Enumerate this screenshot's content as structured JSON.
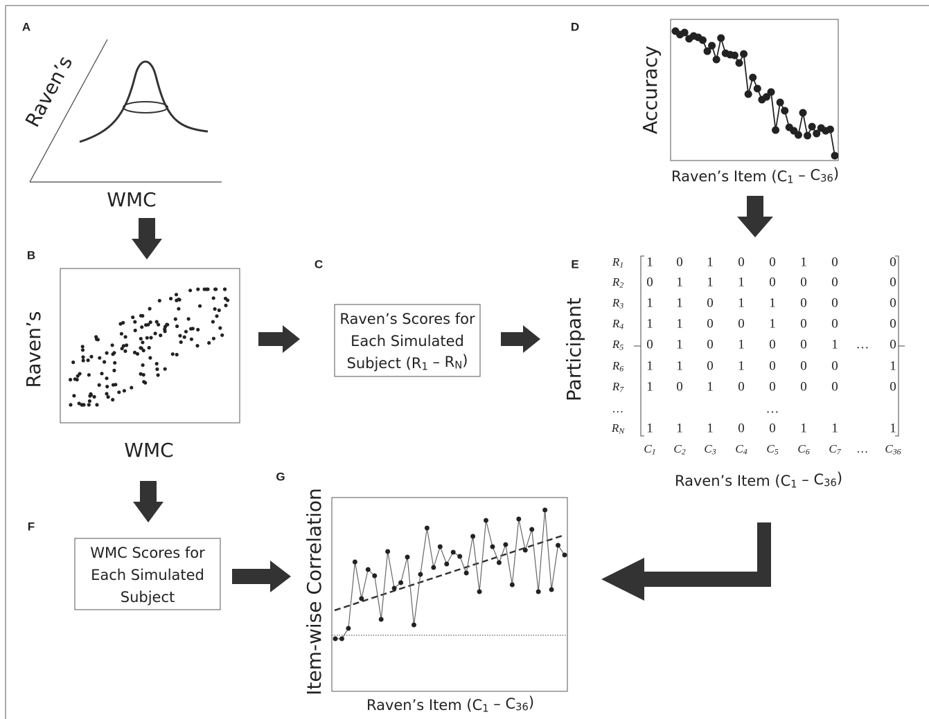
{
  "panel_letters": [
    "A",
    "B",
    "C",
    "D",
    "E",
    "F",
    "G"
  ],
  "panel_a": {
    "y_label": "Raven’s",
    "x_label": "WMC"
  },
  "panel_b": {
    "y_label": "Raven’s",
    "x_label": "WMC"
  },
  "panel_c": {
    "lines": [
      [
        "Raven’s Scores for"
      ],
      [
        "Each Simulated"
      ],
      [
        "Subject (R",
        "1",
        " – R",
        "N",
        ")"
      ]
    ]
  },
  "panel_d": {
    "y_label": "Accuracy",
    "x_label": [
      "Raven’s Item (C",
      "1",
      " – C",
      "36",
      ")"
    ]
  },
  "panel_e": {
    "y_label": "Participant",
    "row_labels": [
      [
        "R",
        "1"
      ],
      [
        "R",
        "2"
      ],
      [
        "R",
        "3"
      ],
      [
        "R",
        "4"
      ],
      [
        "R",
        "5"
      ],
      [
        "R",
        "6"
      ],
      [
        "R",
        "7"
      ],
      [
        "…"
      ],
      [
        "R",
        "N"
      ]
    ],
    "rows": [
      [
        1,
        0,
        1,
        0,
        0,
        1,
        0,
        null,
        0
      ],
      [
        0,
        1,
        1,
        1,
        0,
        0,
        0,
        null,
        0
      ],
      [
        1,
        1,
        0,
        1,
        1,
        0,
        0,
        null,
        0
      ],
      [
        1,
        1,
        0,
        0,
        1,
        0,
        0,
        null,
        0
      ],
      [
        0,
        1,
        0,
        1,
        0,
        0,
        1,
        "…",
        0
      ],
      [
        1,
        1,
        0,
        1,
        0,
        0,
        0,
        null,
        1
      ],
      [
        1,
        0,
        1,
        0,
        0,
        0,
        0,
        null,
        0
      ],
      [
        null,
        null,
        null,
        null,
        "…",
        null,
        null,
        null,
        null
      ],
      [
        1,
        1,
        1,
        0,
        0,
        1,
        1,
        null,
        1
      ]
    ],
    "column_labels": [
      [
        "C",
        "1"
      ],
      [
        "C",
        "2"
      ],
      [
        "C",
        "3"
      ],
      [
        "C",
        "4"
      ],
      [
        "C",
        "5"
      ],
      [
        "C",
        "6"
      ],
      [
        "C",
        "7"
      ],
      [
        "…"
      ],
      [
        "C",
        "36"
      ]
    ],
    "x_label": [
      "Raven’s Item (C",
      "1",
      " – C",
      "36",
      ")"
    ]
  },
  "panel_f": {
    "lines": [
      [
        "WMC Scores for"
      ],
      [
        "Each Simulated"
      ],
      [
        "Subject"
      ]
    ]
  },
  "panel_g": {
    "y_label": "Item-wise Correlation",
    "x_label": [
      "Raven’s Item (C",
      "1",
      " – C",
      "36",
      ")"
    ]
  }
}
